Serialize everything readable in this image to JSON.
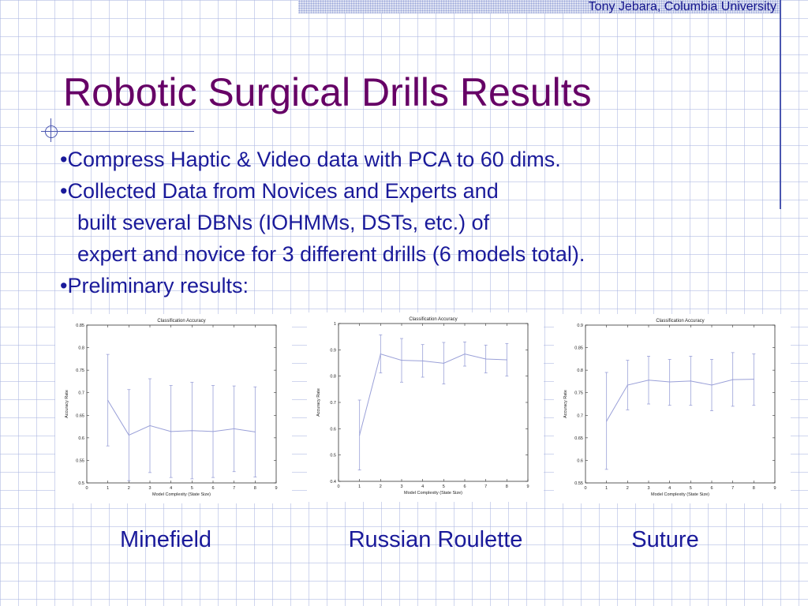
{
  "header": {
    "attribution": "Tony Jebara, Columbia University"
  },
  "slide": {
    "title": "Robotic Surgical Drills Results",
    "bullets": [
      "•Compress Haptic & Video data with PCA to 60 dims.",
      "•Collected Data from Novices and Experts and",
      "built several DBNs (IOHMMs, DSTs, etc.) of",
      "expert and novice for 3 different drills (6 models total).",
      "•Preliminary results:"
    ]
  },
  "chart_data": [
    {
      "type": "line",
      "caption": "Minefield",
      "title": "Classification Accuracy",
      "xlabel": "Model Complexity (State Size)",
      "ylabel": "Accuracy Rate",
      "xlim": [
        0,
        9
      ],
      "ylim": [
        0.5,
        0.85
      ],
      "xticks": [
        "0",
        "1",
        "2",
        "3",
        "4",
        "5",
        "6",
        "7",
        "8",
        "9"
      ],
      "yticks": [
        "0.5",
        "0.55",
        "0.6",
        "0.65",
        "0.7",
        "0.75",
        "0.8",
        "0.85"
      ],
      "x": [
        1,
        2,
        3,
        4,
        5,
        6,
        7,
        8
      ],
      "y": [
        0.683,
        0.606,
        0.627,
        0.614,
        0.616,
        0.614,
        0.62,
        0.613
      ],
      "error_low": [
        0.582,
        0.505,
        0.523,
        0.512,
        0.509,
        0.512,
        0.525,
        0.513
      ],
      "error_high": [
        0.785,
        0.707,
        0.731,
        0.716,
        0.723,
        0.716,
        0.715,
        0.713
      ],
      "color": "#9aa0d8"
    },
    {
      "type": "line",
      "caption": "Russian Roulette",
      "title": "Classification Accuracy",
      "xlabel": "Model Complexity (State Size)",
      "ylabel": "Accuracy Rate",
      "xlim": [
        0,
        9
      ],
      "ylim": [
        0.4,
        1.0
      ],
      "xticks": [
        "0",
        "1",
        "2",
        "3",
        "4",
        "5",
        "6",
        "7",
        "8",
        "9"
      ],
      "yticks": [
        "0.4",
        "0.5",
        "0.6",
        "0.7",
        "0.8",
        "0.9",
        "1"
      ],
      "x": [
        1,
        2,
        3,
        4,
        5,
        6,
        7,
        8
      ],
      "y": [
        0.576,
        0.884,
        0.86,
        0.858,
        0.849,
        0.884,
        0.865,
        0.862
      ],
      "error_low": [
        0.443,
        0.812,
        0.777,
        0.796,
        0.77,
        0.838,
        0.812,
        0.8
      ],
      "error_high": [
        0.709,
        0.957,
        0.943,
        0.92,
        0.928,
        0.93,
        0.918,
        0.924
      ],
      "color": "#9aa0d8"
    },
    {
      "type": "line",
      "caption": "Suture",
      "title": "Classification Accuracy",
      "xlabel": "Model Complexity (State Size)",
      "ylabel": "Accuracy Rate",
      "xlim": [
        0,
        9
      ],
      "ylim": [
        0.55,
        0.9
      ],
      "xticks": [
        "0",
        "1",
        "2",
        "3",
        "4",
        "5",
        "6",
        "7",
        "8",
        "9"
      ],
      "yticks": [
        "0.55",
        "0.6",
        "0.65",
        "0.7",
        "0.75",
        "0.8",
        "0.85",
        "0.9"
      ],
      "x": [
        1,
        2,
        3,
        4,
        5,
        6,
        7,
        8
      ],
      "y": [
        0.687,
        0.767,
        0.778,
        0.774,
        0.776,
        0.767,
        0.779,
        0.78
      ],
      "error_low": [
        0.58,
        0.712,
        0.725,
        0.722,
        0.722,
        0.71,
        0.72,
        0.722
      ],
      "error_high": [
        0.795,
        0.822,
        0.831,
        0.824,
        0.831,
        0.824,
        0.839,
        0.836
      ],
      "color": "#9aa0d8"
    }
  ]
}
